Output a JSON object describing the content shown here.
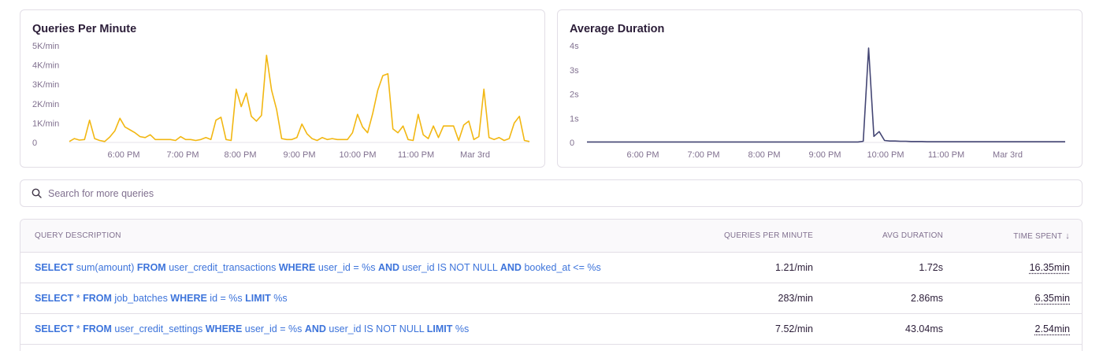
{
  "charts": [
    {
      "title": "Queries Per Minute",
      "color": "#f2b712",
      "chart_data": {
        "type": "line",
        "title": "Queries Per Minute",
        "ylim": [
          0,
          5000
        ],
        "y_ticks": [
          {
            "v": 0,
            "label": "0"
          },
          {
            "v": 1000,
            "label": "1K/min"
          },
          {
            "v": 2000,
            "label": "2K/min"
          },
          {
            "v": 3000,
            "label": "3K/min"
          },
          {
            "v": 4000,
            "label": "4K/min"
          },
          {
            "v": 5000,
            "label": "5K/min"
          }
        ],
        "x_ticks": [
          "6:00 PM",
          "7:00 PM",
          "8:00 PM",
          "9:00 PM",
          "10:00 PM",
          "11:00 PM",
          "Mar 3rd"
        ],
        "series": [
          {
            "values": [
              50,
              200,
              120,
              150,
              1150,
              200,
              100,
              50,
              280,
              600,
              1250,
              800,
              650,
              500,
              300,
              250,
              400,
              150,
              150,
              150,
              150,
              100,
              300,
              150,
              150,
              100,
              150,
              250,
              150,
              1150,
              1300,
              150,
              100,
              2750,
              1850,
              2550,
              1350,
              1100,
              1400,
              4500,
              2700,
              1700,
              200,
              150,
              150,
              250,
              950,
              450,
              200,
              100,
              250,
              150,
              200,
              150,
              150,
              150,
              500,
              1450,
              800,
              500,
              1500,
              2700,
              3450,
              3550,
              700,
              500,
              850,
              150,
              100,
              1450,
              400,
              200,
              850,
              250,
              850,
              850,
              850,
              100,
              900,
              1100,
              150,
              300,
              2750,
              250,
              150,
              250,
              100,
              200,
              1000,
              1350,
              100,
              50
            ]
          }
        ]
      }
    },
    {
      "title": "Average Duration",
      "color": "#444674",
      "chart_data": {
        "type": "line",
        "title": "Average Duration",
        "ylim": [
          0,
          4
        ],
        "y_ticks": [
          {
            "v": 0,
            "label": "0"
          },
          {
            "v": 1,
            "label": "1s"
          },
          {
            "v": 2,
            "label": "2s"
          },
          {
            "v": 3,
            "label": "3s"
          },
          {
            "v": 4,
            "label": "4s"
          }
        ],
        "x_ticks": [
          "6:00 PM",
          "7:00 PM",
          "8:00 PM",
          "9:00 PM",
          "10:00 PM",
          "11:00 PM",
          "Mar 3rd"
        ],
        "series": [
          {
            "values": [
              0.02,
              0.02,
              0.02,
              0.02,
              0.02,
              0.02,
              0.02,
              0.02,
              0.02,
              0.02,
              0.02,
              0.02,
              0.02,
              0.02,
              0.02,
              0.02,
              0.02,
              0.02,
              0.02,
              0.02,
              0.02,
              0.02,
              0.02,
              0.02,
              0.02,
              0.02,
              0.02,
              0.02,
              0.02,
              0.02,
              0.02,
              0.02,
              0.02,
              0.02,
              0.02,
              0.02,
              0.02,
              0.02,
              0.02,
              0.02,
              0.02,
              0.02,
              0.02,
              0.02,
              0.02,
              0.02,
              0.02,
              0.02,
              0.02,
              0.02,
              0.02,
              0.02,
              0.05,
              3.9,
              0.25,
              0.45,
              0.08,
              0.06,
              0.06,
              0.05,
              0.05,
              0.04,
              0.04,
              0.04,
              0.03,
              0.03,
              0.03,
              0.03,
              0.03,
              0.03,
              0.03,
              0.03,
              0.03,
              0.03,
              0.03,
              0.03,
              0.03,
              0.03,
              0.03,
              0.03,
              0.03,
              0.03,
              0.03,
              0.03,
              0.03,
              0.03,
              0.03,
              0.03,
              0.03,
              0.03,
              0.03
            ]
          }
        ]
      }
    }
  ],
  "search": {
    "icon": "search-icon",
    "placeholder": "Search for more queries"
  },
  "table": {
    "headers": {
      "description": "QUERY DESCRIPTION",
      "qpm": "QUERIES PER MINUTE",
      "avg": "AVG DURATION",
      "time": "TIME SPENT"
    },
    "sort_icon": "arrow-down-icon",
    "rows": [
      {
        "tokens": [
          {
            "t": "SELECT",
            "k": true
          },
          {
            "t": " sum(amount) ",
            "k": false
          },
          {
            "t": "FROM",
            "k": true
          },
          {
            "t": " user_credit_transactions ",
            "k": false
          },
          {
            "t": "WHERE",
            "k": true
          },
          {
            "t": " user_id = %s ",
            "k": false
          },
          {
            "t": "AND",
            "k": true
          },
          {
            "t": " user_id IS NOT NULL ",
            "k": false
          },
          {
            "t": "AND",
            "k": true
          },
          {
            "t": " booked_at <= %s",
            "k": false
          }
        ],
        "qpm": "1.21/min",
        "avg": "1.72s",
        "time": "16.35min"
      },
      {
        "tokens": [
          {
            "t": "SELECT",
            "k": true
          },
          {
            "t": " * ",
            "k": false
          },
          {
            "t": "FROM",
            "k": true
          },
          {
            "t": " job_batches ",
            "k": false
          },
          {
            "t": "WHERE",
            "k": true
          },
          {
            "t": " id = %s ",
            "k": false
          },
          {
            "t": "LIMIT",
            "k": true
          },
          {
            "t": " %s",
            "k": false
          }
        ],
        "qpm": "283/min",
        "avg": "2.86ms",
        "time": "6.35min"
      },
      {
        "tokens": [
          {
            "t": "SELECT",
            "k": true
          },
          {
            "t": " * ",
            "k": false
          },
          {
            "t": "FROM",
            "k": true
          },
          {
            "t": " user_credit_settings ",
            "k": false
          },
          {
            "t": "WHERE",
            "k": true
          },
          {
            "t": " user_id = %s ",
            "k": false
          },
          {
            "t": "AND",
            "k": true
          },
          {
            "t": " user_id IS NOT NULL ",
            "k": false
          },
          {
            "t": "LIMIT",
            "k": true
          },
          {
            "t": " %s",
            "k": false
          }
        ],
        "qpm": "7.52/min",
        "avg": "43.04ms",
        "time": "2.54min"
      }
    ]
  }
}
